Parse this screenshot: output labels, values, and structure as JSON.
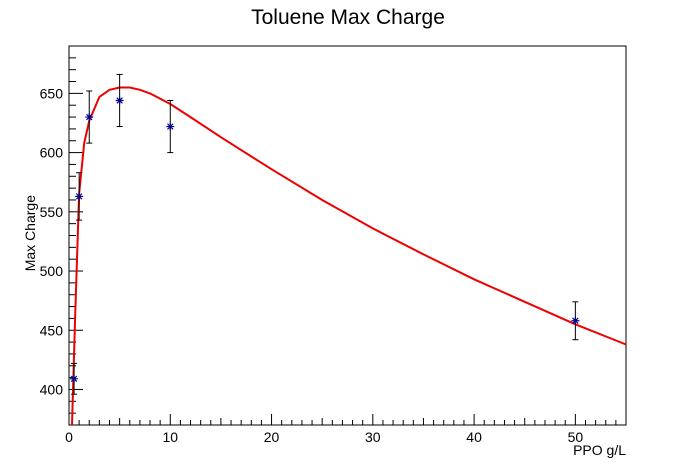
{
  "chart_data": {
    "type": "scatter",
    "title": "Toluene Max Charge",
    "xlabel": "PPO g/L",
    "ylabel": "Max Charge",
    "xlim": [
      0,
      55
    ],
    "ylim": [
      370,
      690
    ],
    "x_ticks": [
      0,
      10,
      20,
      30,
      40,
      50
    ],
    "y_ticks": [
      400,
      450,
      500,
      550,
      600,
      650
    ],
    "grid": false,
    "legend": "none",
    "series": [
      {
        "marker": "asterisk",
        "color": "#00008b",
        "points": [
          {
            "x": 0.5,
            "y": 409,
            "err": 13
          },
          {
            "x": 1,
            "y": 563,
            "err": 20
          },
          {
            "x": 2,
            "y": 630,
            "err": 22
          },
          {
            "x": 5,
            "y": 644,
            "err": 22
          },
          {
            "x": 10,
            "y": 622,
            "err": 22
          },
          {
            "x": 50,
            "y": 458,
            "err": 16
          }
        ]
      },
      {
        "type": "line",
        "color": "#ee0000",
        "points": [
          {
            "x": 0.3,
            "y": 370
          },
          {
            "x": 0.6,
            "y": 460
          },
          {
            "x": 1,
            "y": 565
          },
          {
            "x": 1.5,
            "y": 608
          },
          {
            "x": 2,
            "y": 627
          },
          {
            "x": 3,
            "y": 647
          },
          {
            "x": 4,
            "y": 653
          },
          {
            "x": 5,
            "y": 655
          },
          {
            "x": 6,
            "y": 655
          },
          {
            "x": 7,
            "y": 653
          },
          {
            "x": 8,
            "y": 650
          },
          {
            "x": 10,
            "y": 641
          },
          {
            "x": 12,
            "y": 630
          },
          {
            "x": 15,
            "y": 613
          },
          {
            "x": 20,
            "y": 586
          },
          {
            "x": 25,
            "y": 560
          },
          {
            "x": 30,
            "y": 536
          },
          {
            "x": 35,
            "y": 514
          },
          {
            "x": 40,
            "y": 493
          },
          {
            "x": 45,
            "y": 474
          },
          {
            "x": 50,
            "y": 455
          },
          {
            "x": 55,
            "y": 438
          }
        ]
      }
    ]
  }
}
